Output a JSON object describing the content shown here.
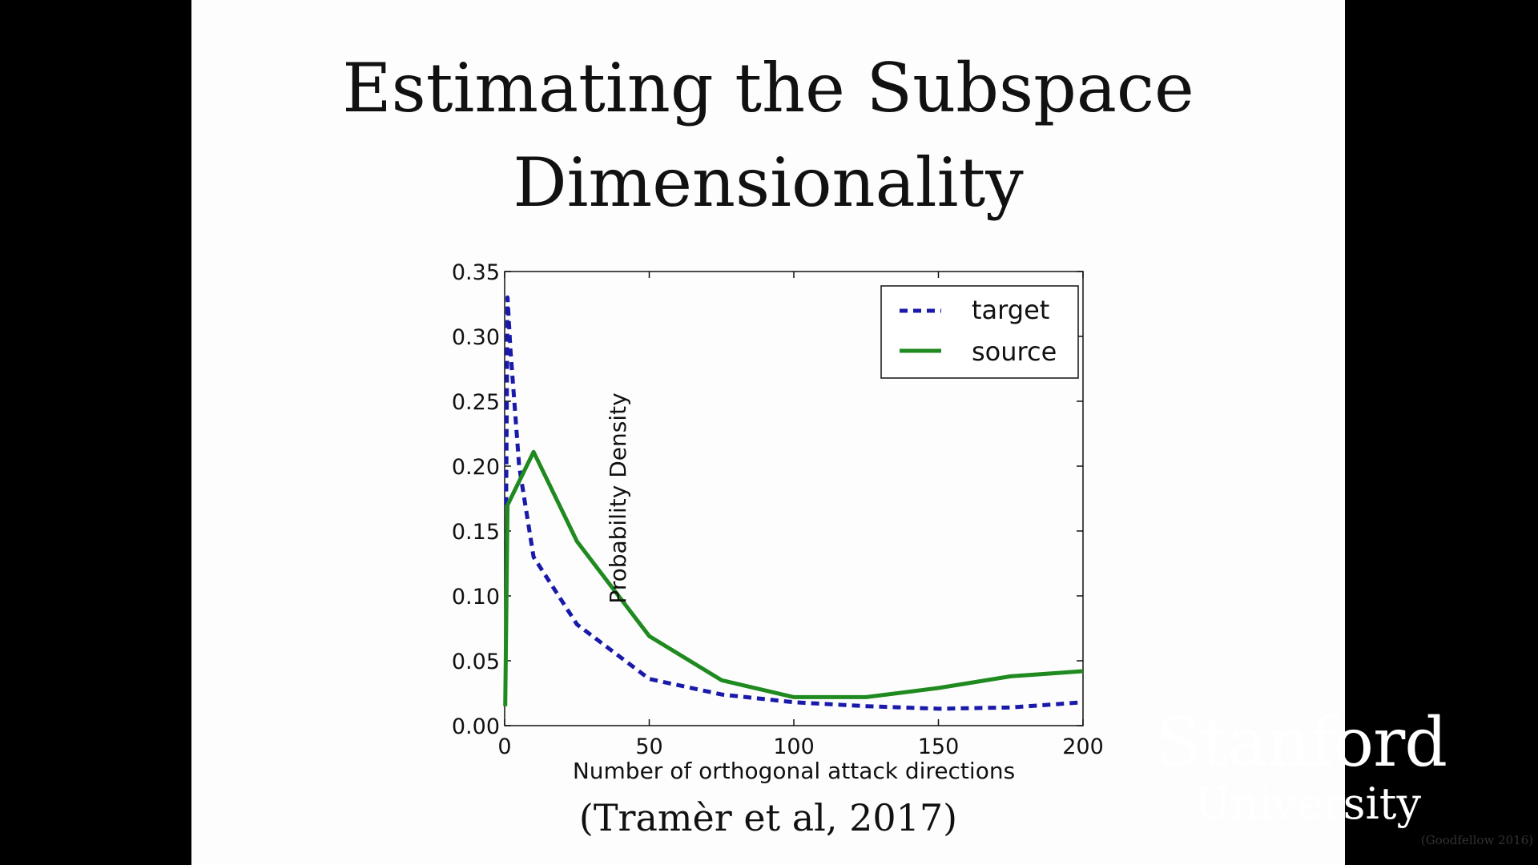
{
  "slide": {
    "title_line1": "Estimating the Subspace",
    "title_line2": "Dimensionality",
    "citation": "(Tramèr et al, 2017)",
    "logo_line1": "Stanford",
    "logo_line2": "University",
    "footnote": "(Goodfellow 2016)"
  },
  "chart_data": {
    "type": "line",
    "xlabel": "Number of orthogonal attack directions",
    "ylabel": "Probability Density",
    "xlim": [
      0,
      200
    ],
    "ylim": [
      0,
      0.35
    ],
    "xticks": [
      "0",
      "50",
      "100",
      "150",
      "200"
    ],
    "yticks": [
      "0.00",
      "0.05",
      "0.10",
      "0.15",
      "0.20",
      "0.25",
      "0.30",
      "0.35"
    ],
    "grid": false,
    "legend_position": "top-right",
    "series": [
      {
        "name": "target",
        "color": "#1a1aaa",
        "style": "dashed",
        "x": [
          0.5,
          1,
          2,
          5,
          10,
          25,
          50,
          75,
          100,
          125,
          150,
          175,
          200
        ],
        "y": [
          0.17,
          0.33,
          0.29,
          0.2,
          0.13,
          0.078,
          0.036,
          0.024,
          0.018,
          0.015,
          0.013,
          0.014,
          0.018
        ]
      },
      {
        "name": "source",
        "color": "#1f8a1f",
        "style": "solid",
        "x": [
          0.2,
          1,
          10,
          25,
          50,
          75,
          100,
          125,
          150,
          175,
          200
        ],
        "y": [
          0.015,
          0.17,
          0.211,
          0.142,
          0.069,
          0.035,
          0.022,
          0.022,
          0.029,
          0.038,
          0.042
        ]
      }
    ]
  }
}
